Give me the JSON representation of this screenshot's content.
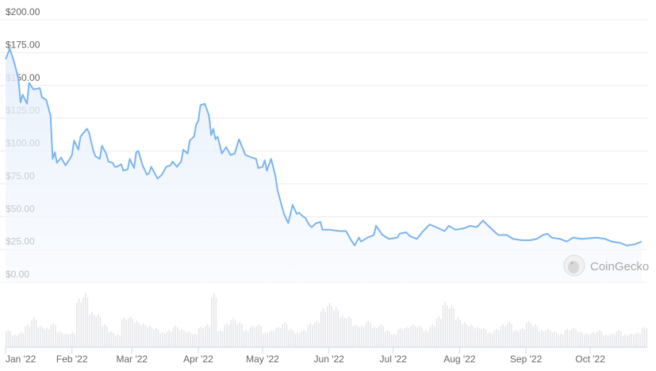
{
  "chart_data": {
    "type": "line",
    "title": "",
    "xlabel": "",
    "ylabel": "",
    "ylim": [
      0,
      200
    ],
    "y_ticks": [
      "$0.00",
      "$25.00",
      "$50.00",
      "$75.00",
      "$100.00",
      "$125.00",
      "$150.00",
      "$175.00",
      "$200.00"
    ],
    "y_tick_values": [
      0,
      25,
      50,
      75,
      100,
      125,
      150,
      175,
      200
    ],
    "x_ticks": [
      {
        "label": "Jan '22",
        "date": "2022-01-01"
      },
      {
        "label": "Feb '22",
        "date": "2022-02-01"
      },
      {
        "label": "Mar '22",
        "date": "2022-03-01"
      },
      {
        "label": "Apr '22",
        "date": "2022-04-01"
      },
      {
        "label": "May '22",
        "date": "2022-05-01"
      },
      {
        "label": "Jun '22",
        "date": "2022-06-01"
      },
      {
        "label": "Jul '22",
        "date": "2022-07-01"
      },
      {
        "label": "Aug '22",
        "date": "2022-08-01"
      },
      {
        "label": "Sep '22",
        "date": "2022-09-01"
      },
      {
        "label": "Oct '22",
        "date": "2022-10-01"
      }
    ],
    "grid": true,
    "line_color": "#7cb5ec",
    "fill_color": "#eaf3fc",
    "volume_color": "#e6e7ea",
    "watermark": "CoinGecko",
    "price": [
      [
        "2022-01-01",
        170
      ],
      [
        "2022-01-03",
        178
      ],
      [
        "2022-01-05",
        168
      ],
      [
        "2022-01-07",
        155
      ],
      [
        "2022-01-08",
        137
      ],
      [
        "2022-01-09",
        143
      ],
      [
        "2022-01-11",
        136
      ],
      [
        "2022-01-12",
        152
      ],
      [
        "2022-01-14",
        147
      ],
      [
        "2022-01-17",
        148
      ],
      [
        "2022-01-18",
        141
      ],
      [
        "2022-01-20",
        139
      ],
      [
        "2022-01-22",
        127
      ],
      [
        "2022-01-23",
        94
      ],
      [
        "2022-01-24",
        99
      ],
      [
        "2022-01-25",
        91
      ],
      [
        "2022-01-27",
        95
      ],
      [
        "2022-01-29",
        89
      ],
      [
        "2022-01-31",
        94
      ],
      [
        "2022-02-01",
        97
      ],
      [
        "2022-02-02",
        108
      ],
      [
        "2022-02-04",
        101
      ],
      [
        "2022-02-05",
        111
      ],
      [
        "2022-02-07",
        115
      ],
      [
        "2022-02-08",
        117
      ],
      [
        "2022-02-09",
        114
      ],
      [
        "2022-02-11",
        100
      ],
      [
        "2022-02-12",
        96
      ],
      [
        "2022-02-14",
        94
      ],
      [
        "2022-02-15",
        104
      ],
      [
        "2022-02-17",
        98
      ],
      [
        "2022-02-18",
        92
      ],
      [
        "2022-02-20",
        91
      ],
      [
        "2022-02-21",
        88
      ],
      [
        "2022-02-22",
        88
      ],
      [
        "2022-02-24",
        90
      ],
      [
        "2022-02-25",
        85
      ],
      [
        "2022-02-27",
        86
      ],
      [
        "2022-02-28",
        94
      ],
      [
        "2022-03-02",
        87
      ],
      [
        "2022-03-03",
        99
      ],
      [
        "2022-03-04",
        100
      ],
      [
        "2022-03-06",
        89
      ],
      [
        "2022-03-08",
        82
      ],
      [
        "2022-03-09",
        83
      ],
      [
        "2022-03-10",
        88
      ],
      [
        "2022-03-12",
        82
      ],
      [
        "2022-03-13",
        79
      ],
      [
        "2022-03-15",
        82
      ],
      [
        "2022-03-17",
        88
      ],
      [
        "2022-03-19",
        89
      ],
      [
        "2022-03-20",
        92
      ],
      [
        "2022-03-22",
        88
      ],
      [
        "2022-03-24",
        92
      ],
      [
        "2022-03-25",
        101
      ],
      [
        "2022-03-27",
        98
      ],
      [
        "2022-03-28",
        108
      ],
      [
        "2022-03-30",
        111
      ],
      [
        "2022-03-31",
        120
      ],
      [
        "2022-04-01",
        123
      ],
      [
        "2022-04-02",
        135
      ],
      [
        "2022-04-04",
        136
      ],
      [
        "2022-04-06",
        127
      ],
      [
        "2022-04-07",
        112
      ],
      [
        "2022-04-08",
        117
      ],
      [
        "2022-04-09",
        109
      ],
      [
        "2022-04-10",
        111
      ],
      [
        "2022-04-12",
        98
      ],
      [
        "2022-04-14",
        103
      ],
      [
        "2022-04-16",
        97
      ],
      [
        "2022-04-18",
        98
      ],
      [
        "2022-04-20",
        109
      ],
      [
        "2022-04-23",
        97
      ],
      [
        "2022-04-26",
        95
      ],
      [
        "2022-04-28",
        94
      ],
      [
        "2022-04-29",
        87
      ],
      [
        "2022-05-01",
        88
      ],
      [
        "2022-05-02",
        93
      ],
      [
        "2022-05-03",
        85
      ],
      [
        "2022-05-05",
        94
      ],
      [
        "2022-05-07",
        81
      ],
      [
        "2022-05-08",
        70
      ],
      [
        "2022-05-10",
        58
      ],
      [
        "2022-05-11",
        52
      ],
      [
        "2022-05-13",
        45
      ],
      [
        "2022-05-15",
        59
      ],
      [
        "2022-05-17",
        52
      ],
      [
        "2022-05-18",
        53
      ],
      [
        "2022-05-20",
        50
      ],
      [
        "2022-05-21",
        49
      ],
      [
        "2022-05-23",
        43
      ],
      [
        "2022-05-24",
        42
      ],
      [
        "2022-05-26",
        45
      ],
      [
        "2022-05-28",
        46
      ],
      [
        "2022-05-29",
        40
      ],
      [
        "2022-06-01",
        40
      ],
      [
        "2022-06-06",
        39
      ],
      [
        "2022-06-09",
        39
      ],
      [
        "2022-06-11",
        33
      ],
      [
        "2022-06-13",
        28
      ],
      [
        "2022-06-15",
        34
      ],
      [
        "2022-06-16",
        31
      ],
      [
        "2022-06-19",
        34
      ],
      [
        "2022-06-22",
        36
      ],
      [
        "2022-06-23",
        43
      ],
      [
        "2022-06-26",
        36
      ],
      [
        "2022-06-29",
        33
      ],
      [
        "2022-07-03",
        34
      ],
      [
        "2022-07-04",
        37
      ],
      [
        "2022-07-07",
        38
      ],
      [
        "2022-07-09",
        35
      ],
      [
        "2022-07-12",
        33
      ],
      [
        "2022-07-15",
        39
      ],
      [
        "2022-07-18",
        44
      ],
      [
        "2022-07-21",
        42
      ],
      [
        "2022-07-25",
        39
      ],
      [
        "2022-07-27",
        43
      ],
      [
        "2022-07-30",
        40
      ],
      [
        "2022-08-03",
        41
      ],
      [
        "2022-08-06",
        43
      ],
      [
        "2022-08-09",
        42
      ],
      [
        "2022-08-12",
        47
      ],
      [
        "2022-08-15",
        42
      ],
      [
        "2022-08-19",
        36
      ],
      [
        "2022-08-23",
        36
      ],
      [
        "2022-08-26",
        33
      ],
      [
        "2022-08-30",
        32
      ],
      [
        "2022-09-03",
        32
      ],
      [
        "2022-09-06",
        33
      ],
      [
        "2022-09-09",
        36
      ],
      [
        "2022-09-11",
        37
      ],
      [
        "2022-09-13",
        34
      ],
      [
        "2022-09-17",
        33
      ],
      [
        "2022-09-20",
        31
      ],
      [
        "2022-09-23",
        34
      ],
      [
        "2022-09-27",
        33
      ],
      [
        "2022-10-04",
        34
      ],
      [
        "2022-10-08",
        33
      ],
      [
        "2022-10-11",
        31
      ],
      [
        "2022-10-15",
        30
      ],
      [
        "2022-10-18",
        28
      ],
      [
        "2022-10-22",
        29
      ],
      [
        "2022-10-25",
        31
      ]
    ],
    "volume_relative": [
      30,
      22,
      26,
      40,
      52,
      38,
      34,
      42,
      28,
      24,
      26,
      85,
      95,
      62,
      58,
      40,
      28,
      22,
      52,
      54,
      46,
      42,
      38,
      34,
      26,
      30,
      38,
      32,
      28,
      24,
      36,
      40,
      95,
      30,
      42,
      52,
      44,
      30,
      38,
      40,
      26,
      30,
      36,
      44,
      32,
      26,
      30,
      42,
      46,
      68,
      78,
      70,
      56,
      54,
      40,
      38,
      46,
      36,
      40,
      30,
      24,
      34,
      36,
      40,
      38,
      30,
      40,
      54,
      80,
      74,
      52,
      44,
      40,
      36,
      34,
      26,
      32,
      40,
      44,
      30,
      34,
      46,
      40,
      30,
      32,
      28,
      24,
      32,
      34,
      28,
      24,
      26,
      30,
      22,
      24,
      30,
      22,
      24,
      26,
      36
    ]
  }
}
